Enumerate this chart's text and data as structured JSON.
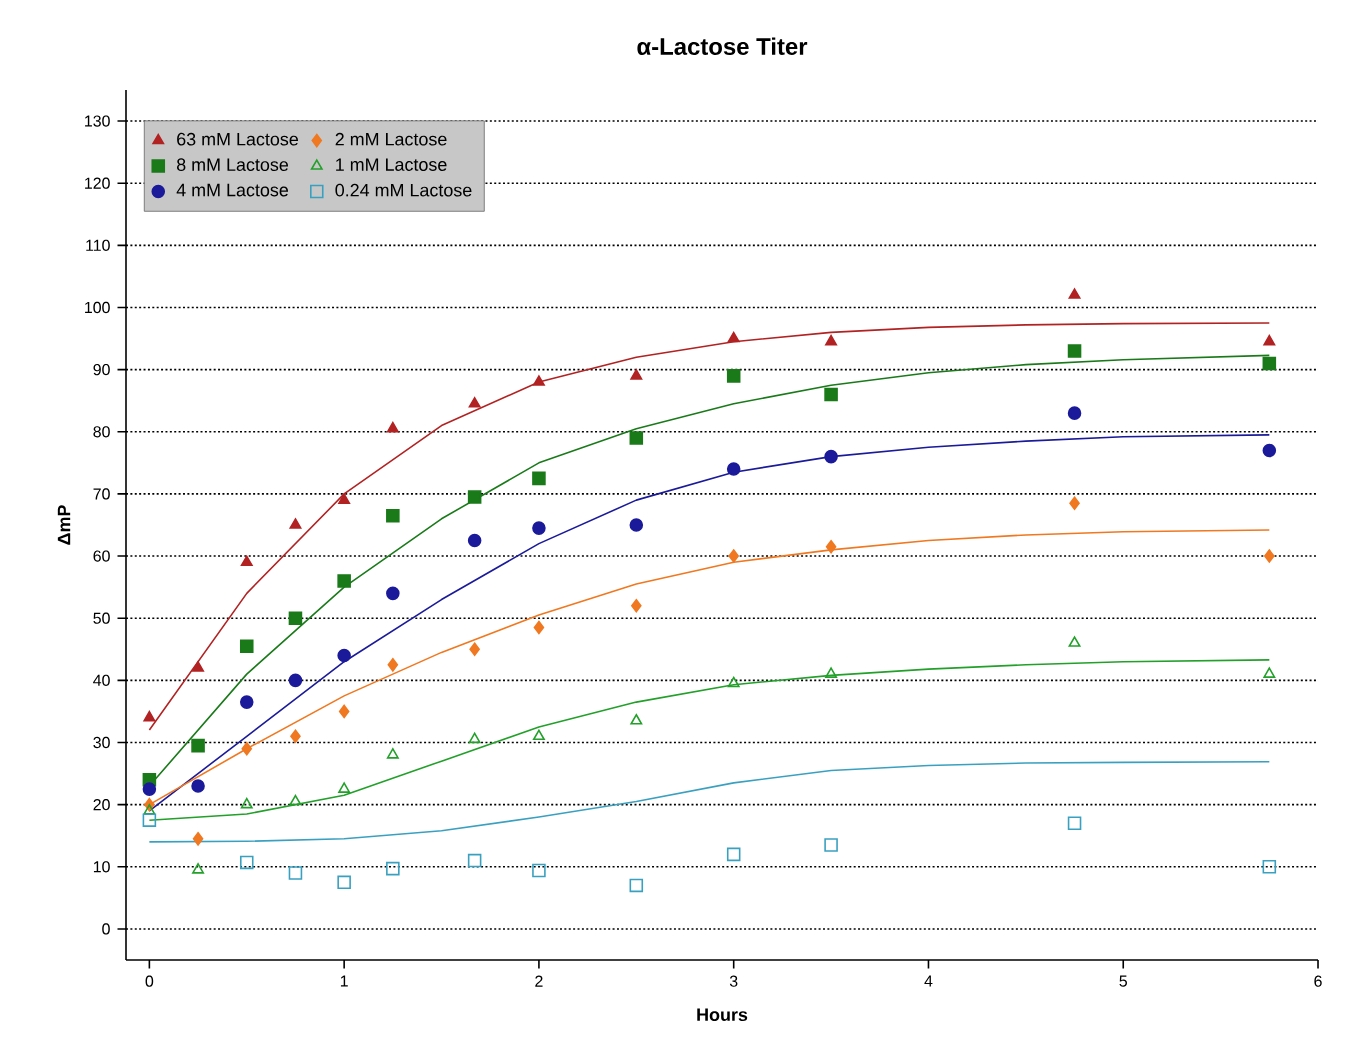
{
  "chart_data": {
    "type": "scatter",
    "title": "α-Lactose Titer",
    "xlabel": "Hours",
    "ylabel": "ΔmP",
    "x": [
      0,
      0.25,
      0.5,
      0.75,
      1,
      1.25,
      1.67,
      2,
      2.5,
      3,
      3.5,
      4.75,
      5.75
    ],
    "series": [
      {
        "name": "63 mM Lactose",
        "color": "#b22222",
        "marker": "triangle",
        "values": [
          34,
          42,
          59,
          65,
          69,
          80.5,
          84.5,
          88,
          89,
          95,
          94.5,
          102,
          94.5
        ]
      },
      {
        "name": "8 mM Lactose",
        "color": "#1a7a1a",
        "marker": "square",
        "values": [
          24,
          29.5,
          45.5,
          50,
          56,
          66.5,
          69.5,
          72.5,
          79,
          89,
          86,
          93,
          91
        ]
      },
      {
        "name": "4 mM Lactose",
        "color": "#1a1a9a",
        "marker": "circle",
        "values": [
          22.5,
          23,
          36.5,
          40,
          44,
          54,
          62.5,
          64.5,
          65,
          74,
          76,
          83,
          77
        ]
      },
      {
        "name": "2 mM Lactose",
        "color": "#f07820",
        "marker": "diamond",
        "values": [
          20,
          14.5,
          29,
          31,
          35,
          42.5,
          45,
          48.5,
          52,
          60,
          61.5,
          68.5,
          60
        ]
      },
      {
        "name": "1 mM Lactose",
        "color": "#22a02a",
        "marker": "triangle",
        "values": [
          19,
          9.5,
          20,
          20.5,
          22.5,
          28,
          30.5,
          31,
          33.5,
          39.5,
          41,
          46,
          41
        ]
      },
      {
        "name": "0.24 mM Lactose",
        "color": "#3aa0c0",
        "marker": "square",
        "values": [
          17.5,
          null,
          10.7,
          9,
          7.5,
          9.7,
          11,
          9.4,
          7,
          12,
          13.5,
          17,
          10
        ]
      },
      {
        "type": "line",
        "color": "#b22222",
        "marker": "none",
        "x": [
          0,
          0.5,
          1,
          1.5,
          2,
          2.5,
          3,
          3.5,
          4,
          4.5,
          5,
          5.75
        ],
        "values": [
          32,
          54,
          70,
          81,
          88,
          92,
          94.5,
          96,
          96.8,
          97.2,
          97.4,
          97.5
        ]
      },
      {
        "type": "line",
        "color": "#1a7a1a",
        "marker": "none",
        "x": [
          0,
          0.5,
          1,
          1.5,
          2,
          2.5,
          3,
          3.5,
          4,
          4.5,
          5,
          5.75
        ],
        "values": [
          23,
          41,
          55,
          66,
          75,
          80.5,
          84.5,
          87.5,
          89.5,
          90.8,
          91.6,
          92.3
        ]
      },
      {
        "type": "line",
        "color": "#1a1a9a",
        "marker": "none",
        "x": [
          0,
          0.5,
          1,
          1.5,
          2,
          2.5,
          3,
          3.5,
          4,
          4.5,
          5,
          5.75
        ],
        "values": [
          19,
          31,
          43,
          53,
          62,
          69,
          73.5,
          76,
          77.5,
          78.5,
          79.2,
          79.5
        ]
      },
      {
        "type": "line",
        "color": "#f07820",
        "marker": "none",
        "x": [
          0,
          0.5,
          1,
          1.5,
          2,
          2.5,
          3,
          3.5,
          4,
          4.5,
          5,
          5.75
        ],
        "values": [
          20,
          29,
          37.5,
          44.5,
          50.5,
          55.5,
          59,
          61,
          62.5,
          63.4,
          63.9,
          64.2
        ]
      },
      {
        "type": "line",
        "color": "#22a02a",
        "marker": "none",
        "x": [
          0,
          0.5,
          1,
          1.5,
          2,
          2.5,
          3,
          3.5,
          4,
          4.5,
          5,
          5.75
        ],
        "values": [
          17.5,
          18.5,
          21.5,
          27,
          32.5,
          36.5,
          39.3,
          40.8,
          41.8,
          42.5,
          43,
          43.3
        ]
      },
      {
        "type": "line",
        "color": "#3aa0c0",
        "marker": "none",
        "x": [
          0,
          0.5,
          1,
          1.5,
          2,
          2.5,
          3,
          3.5,
          4,
          4.5,
          5,
          5.75
        ],
        "values": [
          14,
          14.1,
          14.5,
          15.8,
          18,
          20.5,
          23.5,
          25.5,
          26.3,
          26.7,
          26.8,
          26.9
        ]
      }
    ],
    "xlim": [
      -0.12,
      6
    ],
    "ylim": [
      -5,
      135
    ],
    "xticks": [
      0,
      1,
      2,
      3,
      4,
      5,
      6
    ],
    "yticks": [
      0,
      10,
      20,
      30,
      40,
      50,
      60,
      70,
      80,
      90,
      100,
      110,
      120,
      130
    ],
    "grid": "y",
    "legend": "top left"
  }
}
